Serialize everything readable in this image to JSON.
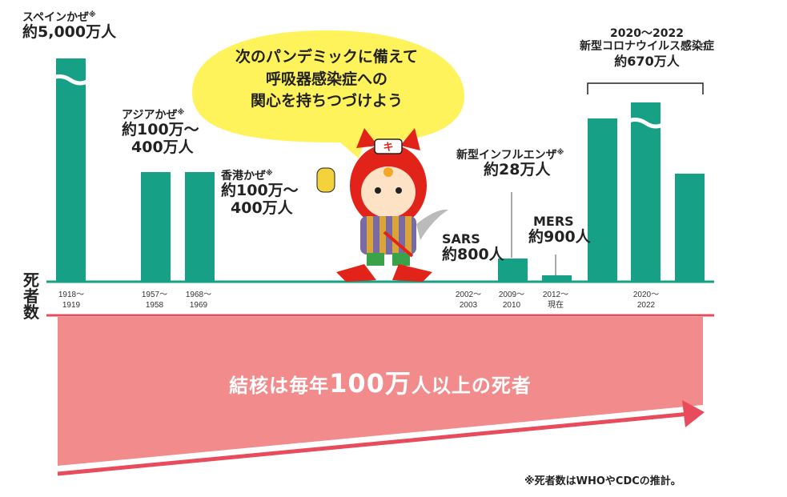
{
  "ylabel": "死者数",
  "bubble_lines": [
    "次のパンデミックに備えて",
    "呼吸器感染症への",
    "関心を持ちつづけよう"
  ],
  "band": {
    "pre": "結核は毎年",
    "num": "100万",
    "post": "人以上の死者"
  },
  "note": "※死者数はWHOやCDCの推計。",
  "pandemics": [
    {
      "name": "スペインかぜ",
      "mark": "※",
      "deaths": "約5,000万人",
      "years": [
        "1918〜",
        "1919"
      ]
    },
    {
      "name": "アジアかぜ",
      "mark": "※",
      "deaths": [
        "約100万〜",
        "400万人"
      ],
      "years": [
        "1957〜",
        "1958"
      ]
    },
    {
      "name": "香港かぜ",
      "mark": "※",
      "deaths": [
        "約100万〜",
        "400万人"
      ],
      "years": [
        "1968〜",
        "1969"
      ]
    },
    {
      "name": "SARS",
      "mark": "",
      "deaths": "約800人",
      "years": [
        "2002〜",
        "2003"
      ]
    },
    {
      "name": "新型インフルエンザ",
      "mark": "※",
      "deaths": "約28万人",
      "years": [
        "2009〜",
        "2010"
      ]
    },
    {
      "name": "MERS",
      "mark": "",
      "deaths": "約900人",
      "years": [
        "2012〜",
        "現在"
      ]
    },
    {
      "name": "2020〜2022",
      "sub": "新型コロナウイルス感染症",
      "mark": "",
      "deaths": "約670万人",
      "years": [
        "2020〜",
        "2022"
      ]
    }
  ],
  "chart_data": {
    "type": "bar",
    "ylabel": "死者数",
    "categories": [
      "1918〜1919",
      "1957〜1958",
      "1968〜1969",
      "2002〜2003",
      "2009〜2010",
      "2012〜現在",
      "2020〜2022"
    ],
    "series": [
      {
        "values": [
          50000000,
          2500000,
          2500000,
          800,
          280000,
          900,
          6700000
        ]
      }
    ],
    "broken_axis": true,
    "colors": {
      "bar": "#16a085",
      "band": "#f28c8c",
      "arrow": "#e84c5c",
      "bubble": "#fff35c"
    }
  }
}
